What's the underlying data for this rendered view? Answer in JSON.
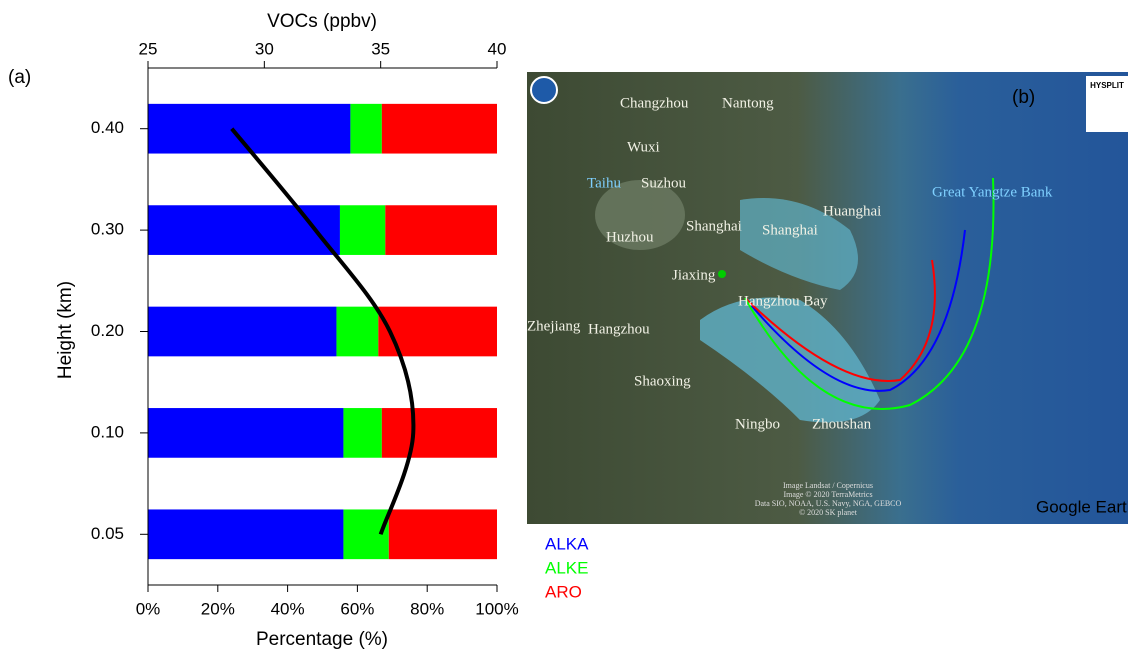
{
  "chart_data": {
    "type": "stacked-hbar",
    "panel_label": "(a)",
    "x_title": "Percentage (%)",
    "x2_title": "VOCs (ppbv)",
    "y_title": "Height (km)",
    "categories": [
      "0.40",
      "0.30",
      "0.20",
      "0.10",
      "0.05"
    ],
    "series": [
      {
        "name": "ALKA",
        "color": "#0000ff",
        "values": [
          58,
          55,
          54,
          56,
          56
        ]
      },
      {
        "name": "ALKE",
        "color": "#00ff00",
        "values": [
          9,
          13,
          12,
          11,
          13
        ]
      },
      {
        "name": "ARO",
        "color": "#ff0000",
        "values": [
          33,
          32,
          34,
          33,
          31
        ]
      }
    ],
    "line": {
      "color": "#000000",
      "axis": "x2",
      "values": [
        28.6,
        32.2,
        35.4,
        36.4,
        35.0
      ]
    },
    "xlim": [
      0,
      100
    ],
    "xticks": [
      {
        "value": 0,
        "label": "0%"
      },
      {
        "value": 20,
        "label": "20%"
      },
      {
        "value": 40,
        "label": "40%"
      },
      {
        "value": 60,
        "label": "60%"
      },
      {
        "value": 80,
        "label": "80%"
      },
      {
        "value": 100,
        "label": "100%"
      }
    ],
    "x2lim": [
      25,
      40
    ],
    "x2ticks": [
      25,
      30,
      35,
      40
    ]
  },
  "map": {
    "panel_label": "(b)",
    "labels": [
      "Changzhou",
      "Nantong",
      "Wuxi",
      "Taihu",
      "Suzhou",
      "Huzhou",
      "Shanghai",
      "Shanghai",
      "Huanghai",
      "Jiaxing",
      "Hangzhou Bay",
      "Zhejiang",
      "Hangzhou",
      "Shaoxing",
      "Ningbo",
      "Zhoushan",
      "Great Yangtze Bank"
    ],
    "brand": "Google Earth",
    "logo": "HYSPLIT",
    "attribution": [
      "Image Landsat / Copernicus",
      "Image © 2020 TerraMetrics",
      "Data SIO, NOAA, U.S. Navy, NGA, GEBCO",
      "© 2020 SK planet"
    ]
  }
}
